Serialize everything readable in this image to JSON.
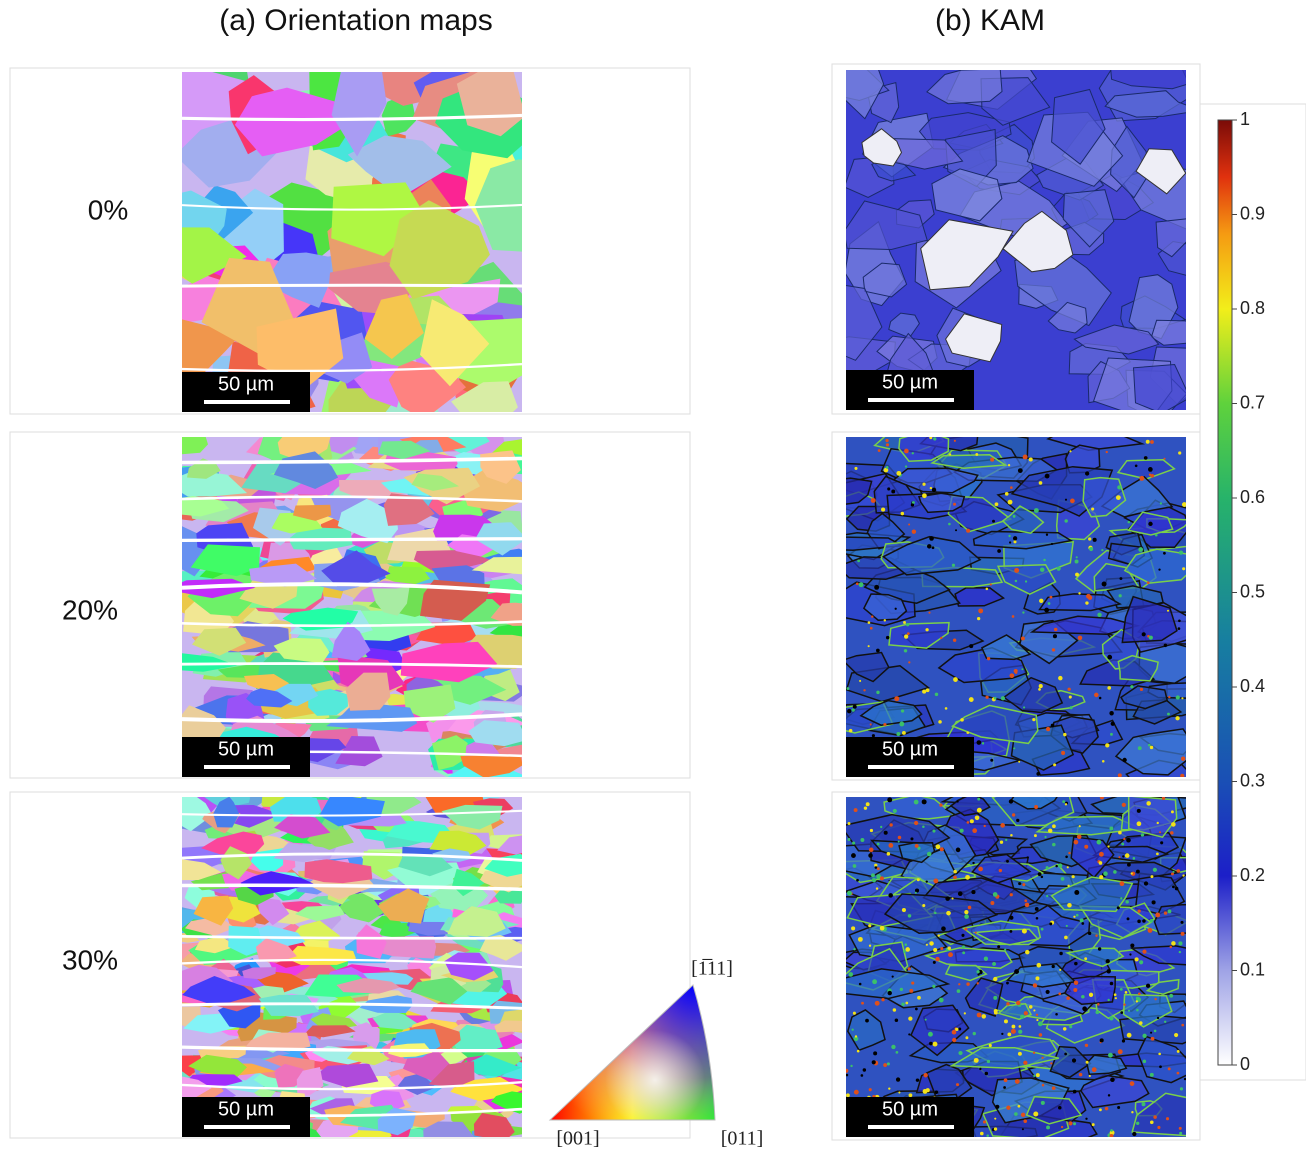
{
  "headings": {
    "a": "(a) Orientation maps",
    "b": "(b) KAM"
  },
  "rows": [
    {
      "label": "0%",
      "scale_bar_orientation": "50 µm",
      "scale_bar_kam": "50 µm"
    },
    {
      "label": "20%",
      "scale_bar_orientation": "50 µm",
      "scale_bar_kam": "50 µm"
    },
    {
      "label": "30%",
      "scale_bar_orientation": "50 µm",
      "scale_bar_kam": "50 µm"
    }
  ],
  "colorbar": {
    "ticks": [
      0,
      0.1,
      0.2,
      0.3,
      0.4,
      0.5,
      0.6,
      0.7,
      0.8,
      0.9,
      1
    ]
  },
  "ipf": {
    "corner_001": "[001]",
    "corner_011": "[011]",
    "corner_111": "[1̅11]"
  }
}
